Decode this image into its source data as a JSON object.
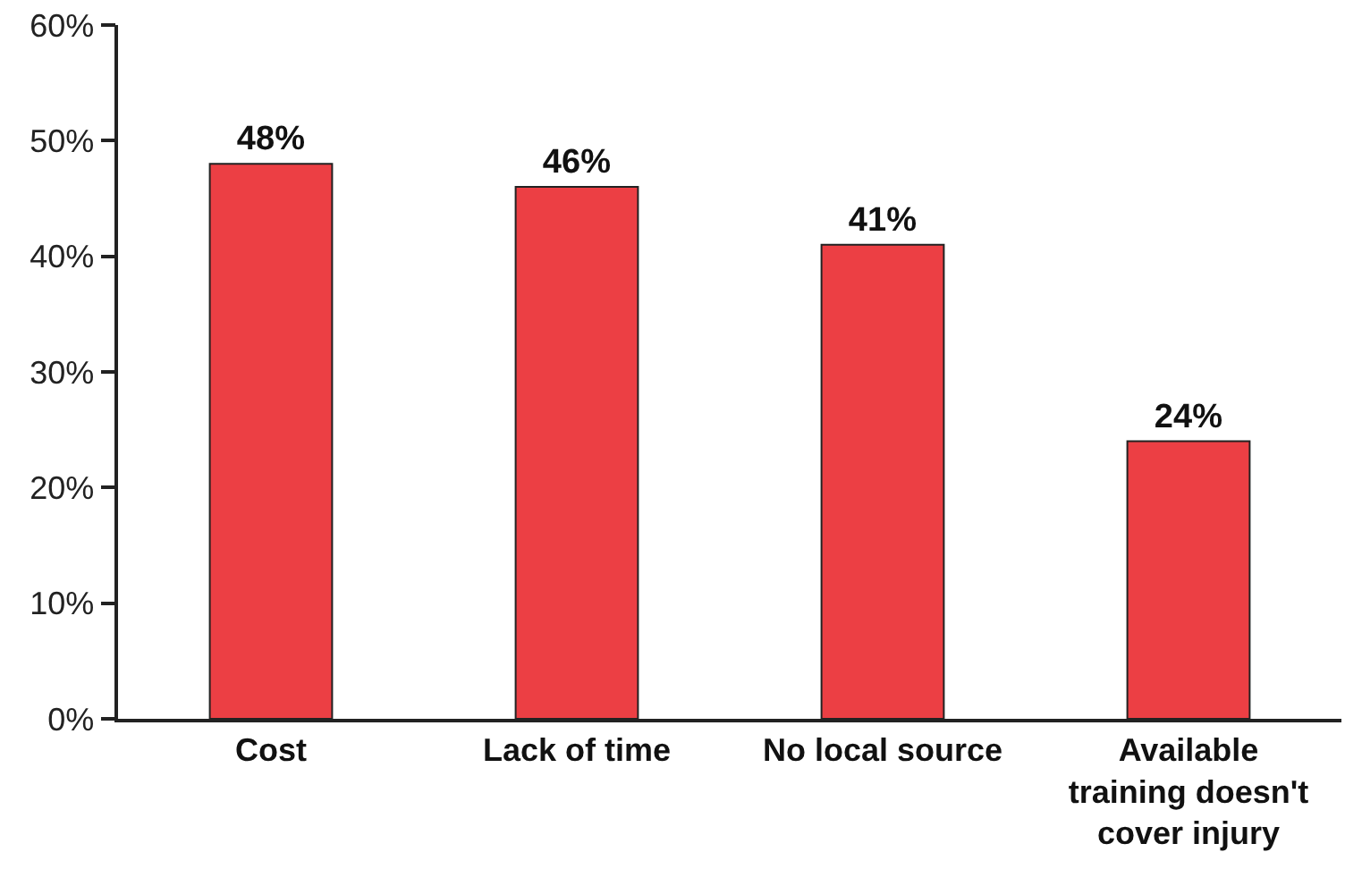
{
  "chart_data": {
    "type": "bar",
    "categories": [
      "Cost",
      "Lack of time",
      "No local source",
      "Available training doesn't cover injury"
    ],
    "values": [
      48,
      46,
      41,
      24
    ],
    "value_labels": [
      "48%",
      "46%",
      "41%",
      "24%"
    ],
    "color": "#ec3f44",
    "ylim": [
      0,
      60
    ],
    "yticks": [
      {
        "value": 0,
        "label": "0%"
      },
      {
        "value": 10,
        "label": "10%"
      },
      {
        "value": 20,
        "label": "20%"
      },
      {
        "value": 30,
        "label": "30%"
      },
      {
        "value": 40,
        "label": "40%"
      },
      {
        "value": 50,
        "label": "50%"
      },
      {
        "value": 60,
        "label": "60%"
      }
    ],
    "grid": false
  }
}
